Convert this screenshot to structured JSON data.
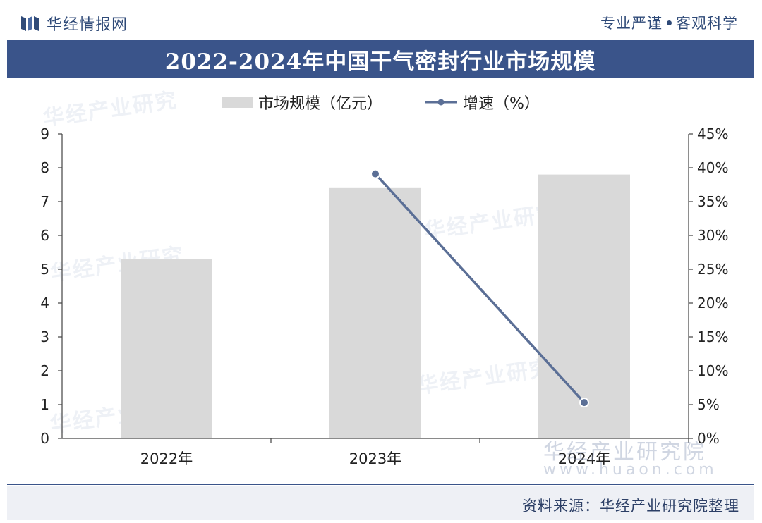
{
  "header": {
    "brand_name": "华经情报网",
    "slogan_left": "专业严谨",
    "slogan_right": "客观科学"
  },
  "footer": {
    "source": "资料来源：华经产业研究院整理"
  },
  "watermark": {
    "text": "华经产业研究院",
    "repeat": "华经产业研究",
    "url": "www.huaon.com"
  },
  "colors": {
    "title_band": "#3a548a",
    "bar": "#d9d9d9",
    "line": "#5b6f96",
    "brand": "#2f4a78"
  },
  "chart_data": {
    "type": "bar",
    "title": "2022-2024年中国干气密封行业市场规模",
    "categories": [
      "2022年",
      "2023年",
      "2024年"
    ],
    "series": [
      {
        "name": "市场规模（亿元）",
        "type": "bar",
        "axis": "left",
        "values": [
          5.3,
          7.4,
          7.8
        ]
      },
      {
        "name": "增速（%）",
        "type": "line",
        "axis": "right",
        "values": [
          null,
          39.1,
          5.3
        ]
      }
    ],
    "y_left": {
      "min": 0,
      "max": 9,
      "ticks": [
        "0",
        "1",
        "2",
        "3",
        "4",
        "5",
        "6",
        "7",
        "8",
        "9"
      ]
    },
    "y_right": {
      "min": 0,
      "max": 45,
      "ticks": [
        "0%",
        "5%",
        "10%",
        "15%",
        "20%",
        "25%",
        "30%",
        "35%",
        "40%",
        "45%"
      ]
    },
    "legend_position": "top-center",
    "grid": false
  }
}
